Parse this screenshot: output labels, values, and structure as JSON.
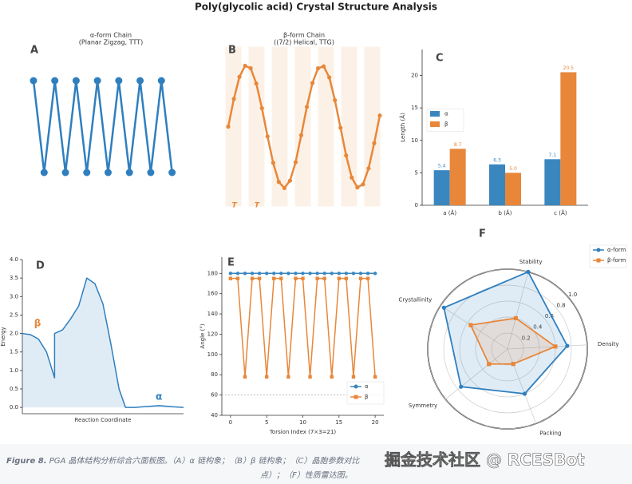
{
  "title": "Poly(glycolic acid) Crystal Structure Analysis",
  "chart_data": [
    {
      "type": "line",
      "panel_label": "A",
      "title": "α-form Chain",
      "subtitle": "(Planar Zigzag, TTT)",
      "axes": false,
      "x": [
        0,
        1,
        2,
        3,
        4,
        5,
        6,
        7,
        8,
        9,
        10,
        11,
        12,
        13
      ],
      "values": [
        1,
        0,
        1,
        0,
        1,
        0,
        1,
        0,
        1,
        0,
        1,
        0,
        1,
        0
      ],
      "xlim": [
        -1,
        14
      ],
      "ylim": [
        -0.1,
        1.1
      ],
      "color": "#2f7fbf",
      "marker": "circle"
    },
    {
      "type": "line",
      "panel_label": "B",
      "title": "β-form Chain",
      "subtitle": "((7/2) Helical, TTG)",
      "axes": false,
      "background_bands": true,
      "x": [
        0,
        1,
        2,
        3,
        4,
        5,
        6,
        7,
        8,
        9,
        10,
        11,
        12,
        13,
        14,
        15,
        16,
        17,
        18,
        19,
        20,
        21,
        22,
        23,
        24,
        25,
        26,
        27
      ],
      "values": [
        0,
        0.45,
        0.81,
        0.99,
        0.95,
        0.7,
        0.3,
        -0.16,
        -0.59,
        -0.9,
        -1,
        -0.88,
        -0.58,
        -0.14,
        0.32,
        0.71,
        0.95,
        0.98,
        0.8,
        0.43,
        -0.02,
        -0.47,
        -0.83,
        -0.99,
        -0.94,
        -0.68,
        -0.27,
        0.18
      ],
      "xlim": [
        -0.5,
        27.5
      ],
      "ylim": [
        -1.3,
        1.3
      ],
      "color": "#e8873a",
      "marker": "circle",
      "annotations": [
        {
          "text": "T",
          "x": 1.1,
          "y": -1.28,
          "color": "#e8873a"
        },
        {
          "text": "T",
          "x": 5.1,
          "y": -1.28,
          "color": "#e8873a"
        }
      ]
    },
    {
      "type": "bar",
      "panel_label": "C",
      "ylabel": "Length (Å)",
      "axes": true,
      "categories": [
        "a (Å)",
        "b (Å)",
        "c (Å)"
      ],
      "series": [
        {
          "name": "α",
          "color": "#3a87c0",
          "values": [
            5.4,
            6.3,
            7.1
          ]
        },
        {
          "name": "β",
          "color": "#e8873a",
          "values": [
            8.7,
            5.0,
            20.5
          ],
          "value_labels": [
            "8.7",
            "5.0",
            "20.5"
          ]
        }
      ],
      "ylim": [
        0,
        24
      ],
      "yticks": [
        0,
        5,
        10,
        15,
        20
      ],
      "legend": "center left"
    },
    {
      "type": "area",
      "panel_label": "D",
      "xlabel": "Reaction Coordinate",
      "ylabel": "Energy",
      "axes": true,
      "x": [
        0,
        0.5,
        1,
        1.5,
        2,
        2,
        2.5,
        3,
        3.5,
        4,
        4.5,
        5,
        5.5,
        6,
        6.4,
        7,
        7.5,
        8.5,
        9.3,
        10
      ],
      "values": [
        2.0,
        1.97,
        1.85,
        1.5,
        0.8,
        2.0,
        2.1,
        2.4,
        2.75,
        3.5,
        3.35,
        2.8,
        1.7,
        0.5,
        0,
        0,
        0.02,
        0.05,
        0.02,
        0
      ],
      "color": "#2f7fbf",
      "xlim": [
        0,
        10
      ],
      "ylim": [
        -0.17,
        4.0
      ],
      "yticks": [
        {
          "value": 0,
          "label": "0.0"
        },
        {
          "value": 0.5,
          "label": "0.5"
        },
        {
          "value": 1,
          "label": "1.0"
        },
        {
          "value": 1.5,
          "label": "1.5"
        },
        {
          "value": 2,
          "label": "2.0"
        },
        {
          "value": 2.5,
          "label": "2.5"
        },
        {
          "value": 3,
          "label": "3.0"
        },
        {
          "value": 3.5,
          "label": "3.5"
        },
        {
          "value": 4,
          "label": "4.0"
        }
      ],
      "annotations": [
        {
          "text": "β",
          "x": 0.94,
          "y": 2.27,
          "color": "#e8873a"
        },
        {
          "text": "α",
          "x": 8.47,
          "y": 0.28,
          "color": "#2f7fbf"
        }
      ]
    },
    {
      "type": "line",
      "panel_label": "E",
      "xlabel": "Torsion Index (7×3=21)",
      "ylabel": "Angle (°)",
      "axes": true,
      "x": [
        0,
        1,
        2,
        3,
        4,
        5,
        6,
        7,
        8,
        9,
        10,
        11,
        12,
        13,
        14,
        15,
        16,
        17,
        18,
        19,
        20
      ],
      "series": [
        {
          "name": "α",
          "color": "#3a87c0",
          "marker": "circle",
          "values": [
            180,
            180,
            180,
            180,
            180,
            180,
            180,
            180,
            180,
            180,
            180,
            180,
            180,
            180,
            180,
            180,
            180,
            180,
            180,
            180,
            180
          ]
        },
        {
          "name": "β",
          "color": "#e8873a",
          "marker": "square",
          "values": [
            175,
            175,
            78,
            175,
            175,
            78,
            175,
            175,
            78,
            175,
            175,
            78,
            175,
            175,
            78,
            175,
            175,
            78,
            175,
            175,
            78
          ]
        }
      ],
      "xlim": [
        -1.2,
        21.2
      ],
      "ylim": [
        40,
        196
      ],
      "xticks": [
        0,
        5,
        10,
        15,
        20
      ],
      "yticks": [
        40,
        60,
        80,
        100,
        120,
        140,
        160,
        180
      ],
      "hline": 60,
      "legend": "lower right"
    },
    {
      "type": "radar",
      "panel_label": "F",
      "categories": [
        "Stability",
        "Density",
        "Packing",
        "Symmetry",
        "Crystallinity"
      ],
      "series": [
        {
          "name": "α-form",
          "color": "#2f7fbf",
          "marker": "circle",
          "values": [
            1.0,
            0.75,
            0.6,
            0.75,
            0.95
          ]
        },
        {
          "name": "β-form",
          "color": "#e8873a",
          "marker": "square",
          "values": [
            0.4,
            0.6,
            0.2,
            0.3,
            0.55
          ]
        }
      ],
      "rlim": [
        0,
        1
      ],
      "rticks": [
        0.2,
        0.4,
        0.6,
        0.8,
        {
          "value": 1,
          "label": "1.0"
        }
      ],
      "legend": "upper right"
    }
  ],
  "caption": {
    "label": "Figure 8.",
    "line1": "PGA 晶体结构分析综合六面板图。（A）α 链构象；（B）β 链构象；（C）晶胞参数对比",
    "line2": "点）；（F）性质雷达图。"
  },
  "watermark": "掘金技术社区 @ RCESBot"
}
